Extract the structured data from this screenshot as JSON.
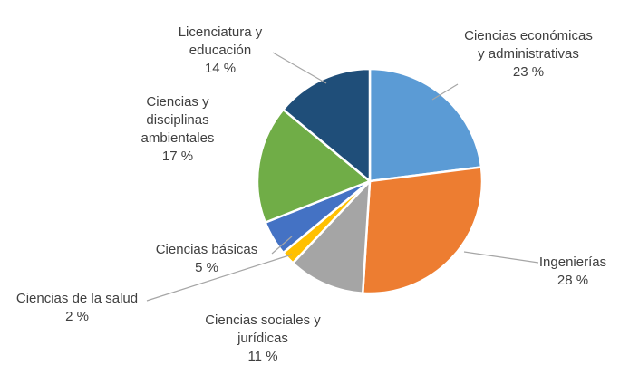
{
  "chart_data": {
    "type": "pie",
    "title": "",
    "unit": "%",
    "start_angle_deg": 0,
    "direction": "clockwise",
    "legend": "none",
    "data_labels": "outside-with-leader-lines",
    "slices": [
      {
        "label": "Ciencias económicas y administrativas",
        "value": 23,
        "color": "#5B9BD5"
      },
      {
        "label": "Ingenierías",
        "value": 28,
        "color": "#ED7D31"
      },
      {
        "label": "Ciencias sociales y jurídicas",
        "value": 11,
        "color": "#A5A5A5"
      },
      {
        "label": "Ciencias de la salud",
        "value": 2,
        "color": "#FFC000"
      },
      {
        "label": "Ciencias básicas",
        "value": 5,
        "color": "#4472C4"
      },
      {
        "label": "Ciencias y disciplinas ambientales",
        "value": 17,
        "color": "#70AD47"
      },
      {
        "label": "Licenciatura y educación",
        "value": 14,
        "color": "#1F4E79"
      }
    ]
  },
  "labels": {
    "licenciatura": "Licenciatura y\neducación\n14 %",
    "economicas": "Ciencias económicas\ny administrativas\n23 %",
    "ambientales": "Ciencias y\ndisciplinas\nambientales\n17 %",
    "basicas": "Ciencias básicas\n5 %",
    "salud": "Ciencias de la salud\n2 %",
    "sociales": "Ciencias sociales y\njurídicas\n11 %",
    "ingenierias": "Ingenierías\n28 %"
  },
  "style": {
    "leader_line_color": "#A6A6A6",
    "slice_border_color": "#FFFFFF"
  }
}
